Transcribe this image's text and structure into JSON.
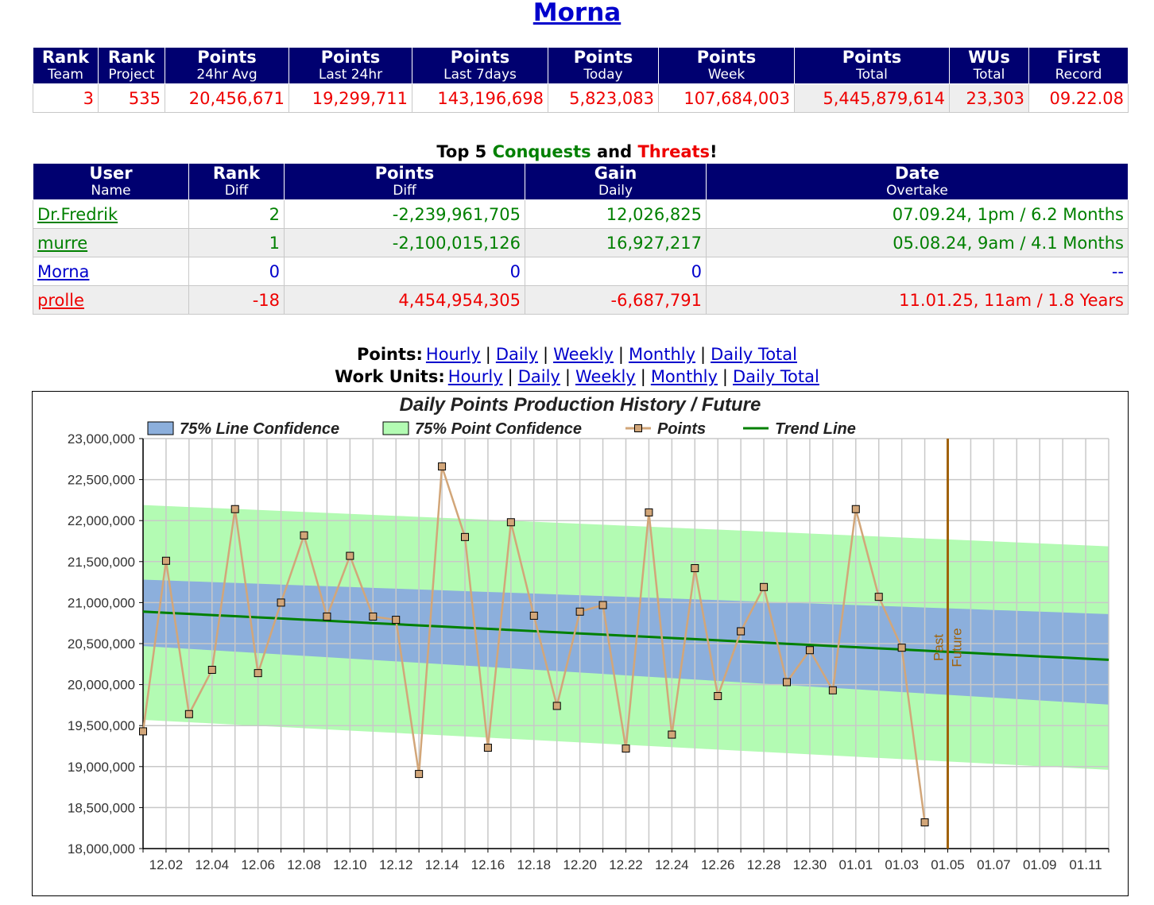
{
  "header": {
    "title": "Morna"
  },
  "stats": {
    "columns": [
      {
        "name": "Rank",
        "sub": "Team"
      },
      {
        "name": "Rank",
        "sub": "Project"
      },
      {
        "name": "Points",
        "sub": "24hr Avg"
      },
      {
        "name": "Points",
        "sub": "Last 24hr"
      },
      {
        "name": "Points",
        "sub": "Last 7days"
      },
      {
        "name": "Points",
        "sub": "Today"
      },
      {
        "name": "Points",
        "sub": "Week"
      },
      {
        "name": "Points",
        "sub": "Total"
      },
      {
        "name": "WUs",
        "sub": "Total"
      },
      {
        "name": "First",
        "sub": "Record"
      }
    ],
    "values": [
      "3",
      "535",
      "20,456,671",
      "19,299,711",
      "143,196,698",
      "5,823,083",
      "107,684,003",
      "5,445,879,614",
      "23,303",
      "09.22.08"
    ]
  },
  "top5": {
    "title": {
      "prefix": "Top 5",
      "conquests": "Conquests",
      "and": "and",
      "threats": "Threats",
      "suffix": "!"
    },
    "columns": [
      {
        "name": "User",
        "sub": "Name"
      },
      {
        "name": "Rank",
        "sub": "Diff"
      },
      {
        "name": "Points",
        "sub": "Diff"
      },
      {
        "name": "Gain",
        "sub": "Daily"
      },
      {
        "name": "Date",
        "sub": "Overtake"
      }
    ],
    "rows": [
      {
        "color": "#008000",
        "cells": [
          "Dr.Fredrik",
          "2",
          "-2,239,961,705",
          "12,026,825",
          "07.09.24, 1pm / 6.2 Months"
        ]
      },
      {
        "color": "#008000",
        "cells": [
          "murre",
          "1",
          "-2,100,015,126",
          "16,927,217",
          "05.08.24, 9am / 4.1 Months"
        ]
      },
      {
        "color": "#0000cc",
        "cells": [
          "Morna",
          "0",
          "0",
          "0",
          "--"
        ]
      },
      {
        "color": "#ee0000",
        "cells": [
          "prolle",
          "-18",
          "4,454,954,305",
          "-6,687,791",
          "11.01.25, 11am / 1.8 Years"
        ]
      }
    ]
  },
  "nav": {
    "separator": "|",
    "lines": [
      {
        "label": "Points:",
        "items": [
          "Hourly",
          "Daily",
          "Weekly",
          "Monthly",
          "Daily Total"
        ]
      },
      {
        "label": "Work Units:",
        "items": [
          "Hourly",
          "Daily",
          "Weekly",
          "Monthly",
          "Daily Total"
        ]
      }
    ]
  },
  "chart_data": {
    "type": "line",
    "title": "Daily Points Production History / Future",
    "legend": "top",
    "grid": true,
    "categories": [
      null,
      "12.02",
      null,
      "12.04",
      null,
      "12.06",
      null,
      "12.08",
      null,
      "12.10",
      null,
      "12.12",
      null,
      "12.14",
      null,
      "12.16",
      null,
      "12.18",
      null,
      "12.20",
      null,
      "12.22",
      null,
      "12.24",
      null,
      "12.26",
      null,
      "12.28",
      null,
      "12.30",
      null,
      "01.01",
      null,
      "01.03",
      null,
      "01.05",
      null,
      "01.07",
      null,
      "01.09",
      null,
      "01.11",
      null
    ],
    "ylim": [
      18000000,
      23000000
    ],
    "yticks": [
      {
        "value": 18000000,
        "label": "18,000,000"
      },
      {
        "value": 18500000,
        "label": "18,500,000"
      },
      {
        "value": 19000000,
        "label": "19,000,000"
      },
      {
        "value": 19500000,
        "label": "19,500,000"
      },
      {
        "value": 20000000,
        "label": "20,000,000"
      },
      {
        "value": 20500000,
        "label": "20,500,000"
      },
      {
        "value": 21000000,
        "label": "21,000,000"
      },
      {
        "value": 21500000,
        "label": "21,500,000"
      },
      {
        "value": 22000000,
        "label": "22,000,000"
      },
      {
        "value": 22500000,
        "label": "22,500,000"
      },
      {
        "value": 23000000,
        "label": "23,000,000"
      }
    ],
    "marker": {
      "x": "01.05",
      "labels": [
        "Past",
        "Future"
      ],
      "color": "#a0620a"
    },
    "series": [
      {
        "name": "75% Line Confidence",
        "color": "#8cafdc",
        "lower": [
          20470000,
          20453000,
          20436000,
          20419000,
          20402000,
          20385000,
          20368000,
          20351000,
          20334000,
          20317000,
          20300000,
          20283000,
          20266000,
          20249000,
          20232000,
          20215000,
          20198000,
          20181000,
          20164000,
          20147000,
          20130000,
          20113000,
          20096000,
          20079000,
          20062000,
          20045000,
          20028000,
          20011000,
          19994000,
          19977000,
          19960000,
          19943000,
          19926000,
          19909000,
          19892000,
          19875000,
          19858000,
          19841000,
          19824000,
          19807000,
          19790000,
          19773000,
          19756000
        ],
        "upper": [
          21280000,
          21270000,
          21260000,
          21250000,
          21240000,
          21230000,
          21220000,
          21210000,
          21200000,
          21190000,
          21180000,
          21170000,
          21160000,
          21150000,
          21140000,
          21130000,
          21120000,
          21110000,
          21100000,
          21090000,
          21080000,
          21070000,
          21060000,
          21050000,
          21040000,
          21030000,
          21020000,
          21010000,
          21000000,
          20990000,
          20980000,
          20970000,
          20960000,
          20950000,
          20940000,
          20930000,
          20920000,
          20910000,
          20900000,
          20890000,
          20880000,
          20870000,
          20860000
        ]
      },
      {
        "name": "75% Point Confidence",
        "color": "#b3fbb3",
        "lower": [
          19570000,
          19555500,
          19541000,
          19526500,
          19512000,
          19497500,
          19483000,
          19468500,
          19454000,
          19439500,
          19425000,
          19410500,
          19396000,
          19381500,
          19367000,
          19352500,
          19338000,
          19323500,
          19309000,
          19294500,
          19280000,
          19265500,
          19251000,
          19236500,
          19222000,
          19207500,
          19193000,
          19178500,
          19164000,
          19149500,
          19135000,
          19120500,
          19106000,
          19091500,
          19077000,
          19062500,
          19048000,
          19033500,
          19019000,
          19004500,
          18990000,
          18975500,
          18961000
        ],
        "upper": [
          22190000,
          22178000,
          22166000,
          22154000,
          22142000,
          22130000,
          22118000,
          22106000,
          22094000,
          22082000,
          22070000,
          22058000,
          22046000,
          22034000,
          22022000,
          22010000,
          21998000,
          21986000,
          21974000,
          21962000,
          21950000,
          21938000,
          21926000,
          21914000,
          21902000,
          21890000,
          21878000,
          21866000,
          21854000,
          21842000,
          21830000,
          21818000,
          21806000,
          21794000,
          21782000,
          21770000,
          21758000,
          21746000,
          21734000,
          21722000,
          21710000,
          21698000,
          21686000
        ]
      },
      {
        "name": "Points",
        "color": "#d2a679",
        "values": [
          19430000,
          21510000,
          19640000,
          20180000,
          22140000,
          20140000,
          21000000,
          21820000,
          20830000,
          21570000,
          20830000,
          20790000,
          18910000,
          22660000,
          21800000,
          19230000,
          21980000,
          20840000,
          19740000,
          20890000,
          20970000,
          19220000,
          22100000,
          19390000,
          21420000,
          19860000,
          20650000,
          21190000,
          20030000,
          20420000,
          19930000,
          22140000,
          21070000,
          20450000,
          18320000,
          null,
          null,
          null,
          null,
          null,
          null,
          null,
          null
        ]
      },
      {
        "name": "Trend Line",
        "color": "#008000",
        "values": [
          20890000,
          20876000,
          20862000,
          20848000,
          20834000,
          20820000,
          20806000,
          20792000,
          20778000,
          20764000,
          20750000,
          20736000,
          20722000,
          20708000,
          20694000,
          20680000,
          20666000,
          20652000,
          20638000,
          20624000,
          20610000,
          20596000,
          20582000,
          20568000,
          20554000,
          20540000,
          20526000,
          20512000,
          20498000,
          20484000,
          20470000,
          20456000,
          20442000,
          20428000,
          20414000,
          20400000,
          20386000,
          20372000,
          20358000,
          20344000,
          20330000,
          20316000,
          20302000
        ]
      }
    ]
  }
}
